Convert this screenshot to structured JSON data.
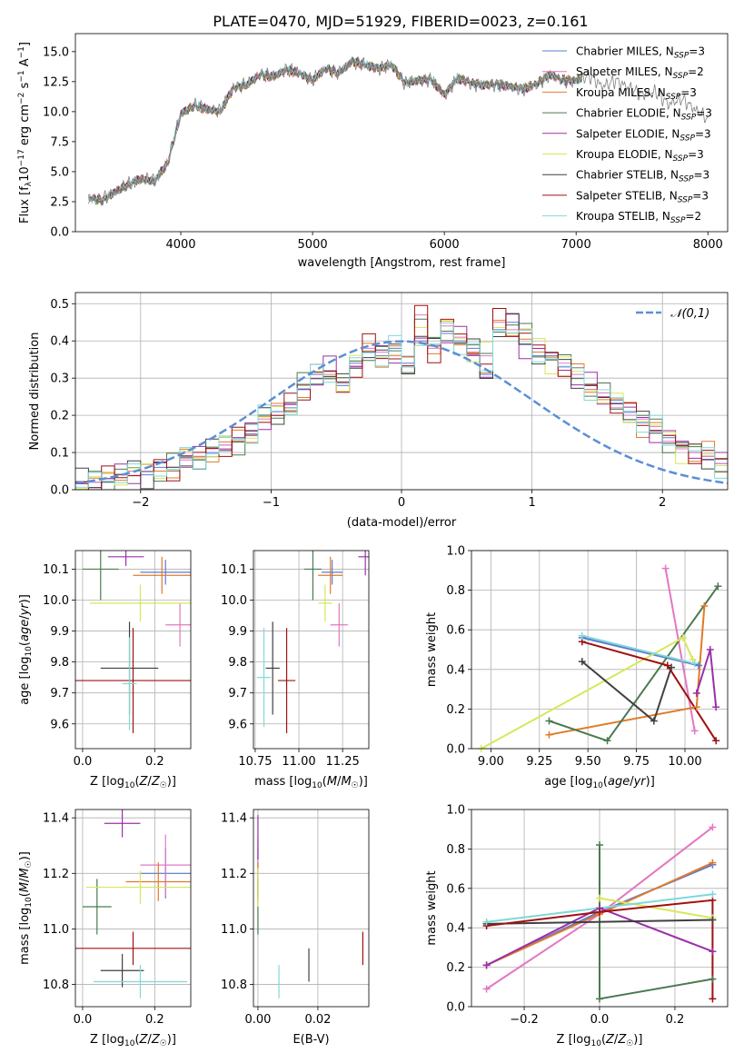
{
  "figure": {
    "title": "PLATE=0470, MJD=51929, FIBERID=0023, z=0.161"
  },
  "colors": {
    "Chabrier MILES": "#5b7bd5",
    "Salpeter MILES": "#e377c2",
    "Kroupa MILES": "#e07b2a",
    "Chabrier ELODIE": "#4a7a50",
    "Salpeter ELODIE": "#9b30a8",
    "Kroupa ELODIE": "#d6e85a",
    "Chabrier STELIB": "#404040",
    "Salpeter STELIB": "#a01010",
    "Kroupa STELIB": "#80d8d8"
  },
  "chart_data": [
    {
      "id": "spectrum",
      "type": "line",
      "xlabel": "wavelength [Angstrom, rest frame]",
      "ylabel": "Flux [f_λ 10^-17 erg cm^-2 s^-1 A^-1]",
      "xlim": [
        3200,
        8150
      ],
      "ylim": [
        0,
        16.5
      ],
      "xticks": [
        4000,
        5000,
        6000,
        7000,
        8000
      ],
      "yticks": [
        0.0,
        2.5,
        5.0,
        7.5,
        10.0,
        12.5,
        15.0
      ],
      "legend_position": "top-right",
      "grid": false,
      "data_color": "#808080",
      "observed": {
        "name": "data",
        "x": [
          3300,
          3400,
          3500,
          3600,
          3700,
          3800,
          3900,
          4000,
          4100,
          4200,
          4300,
          4400,
          4500,
          4600,
          4700,
          4800,
          4900,
          5000,
          5100,
          5200,
          5300,
          5400,
          5500,
          5600,
          5700,
          5800,
          5900,
          6000,
          6100,
          6200,
          6300,
          6400,
          6500,
          6600,
          6700,
          6800,
          6900,
          7000,
          7100,
          7200,
          7300,
          7400,
          7500,
          7600,
          7700,
          7800,
          7900,
          8000
        ],
        "y": [
          2.8,
          2.6,
          3.3,
          3.9,
          4.4,
          4.2,
          5.7,
          9.8,
          10.5,
          10.2,
          10.0,
          12.0,
          12.2,
          13.1,
          12.9,
          13.5,
          13.2,
          12.6,
          13.6,
          13.2,
          14.2,
          13.9,
          13.6,
          13.9,
          12.4,
          12.6,
          12.7,
          11.4,
          12.8,
          12.4,
          12.2,
          12.3,
          12.1,
          11.9,
          12.3,
          13.1,
          12.6,
          12.6,
          13.0,
          12.1,
          12.6,
          12.0,
          11.4,
          11.7,
          10.6,
          11.1,
          10.2,
          9.4
        ]
      },
      "series": [
        {
          "name": "Chabrier MILES",
          "n_ssp": "3"
        },
        {
          "name": "Salpeter MILES",
          "n_ssp": "2"
        },
        {
          "name": "Kroupa MILES",
          "n_ssp": "3"
        },
        {
          "name": "Chabrier ELODIE",
          "n_ssp": "3"
        },
        {
          "name": "Salpeter ELODIE",
          "n_ssp": "3"
        },
        {
          "name": "Kroupa ELODIE",
          "n_ssp": "3"
        },
        {
          "name": "Chabrier STELIB",
          "n_ssp": "3"
        },
        {
          "name": "Salpeter STELIB",
          "n_ssp": "3"
        },
        {
          "name": "Kroupa STELIB",
          "n_ssp": "2"
        }
      ]
    },
    {
      "id": "residuals",
      "type": "bar",
      "xlabel": "(data-model)/error",
      "ylabel": "Normed distribution",
      "xlim": [
        -2.5,
        2.5
      ],
      "ylim": [
        0,
        0.53
      ],
      "xticks": [
        -2,
        -1,
        0,
        1,
        2
      ],
      "yticks": [
        0.0,
        0.1,
        0.2,
        0.3,
        0.4,
        0.5
      ],
      "grid": true,
      "legend_position": "top-right",
      "reference": {
        "name": "𝒩(0,1)",
        "color": "#5b8fd5",
        "style": "dashed"
      },
      "bin_width": 0.1,
      "bin_start": -2.5,
      "histograms": [
        {
          "name": "Chabrier MILES",
          "values": [
            0.02,
            0.02,
            0.03,
            0.04,
            0.05,
            0.04,
            0.06,
            0.05,
            0.09,
            0.08,
            0.1,
            0.12,
            0.14,
            0.15,
            0.2,
            0.21,
            0.22,
            0.27,
            0.31,
            0.32,
            0.28,
            0.34,
            0.37,
            0.36,
            0.38,
            0.34,
            0.4,
            0.39,
            0.42,
            0.4,
            0.38,
            0.31,
            0.43,
            0.45,
            0.39,
            0.36,
            0.36,
            0.33,
            0.3,
            0.28,
            0.25,
            0.24,
            0.21,
            0.18,
            0.16,
            0.14,
            0.12,
            0.1,
            0.09,
            0.07,
            0.06
          ]
        },
        {
          "name": "Salpeter MILES",
          "values": [
            0.02,
            0.02,
            0.03,
            0.04,
            0.05,
            0.05,
            0.05,
            0.06,
            0.08,
            0.09,
            0.11,
            0.12,
            0.13,
            0.16,
            0.19,
            0.2,
            0.23,
            0.28,
            0.3,
            0.31,
            0.29,
            0.33,
            0.38,
            0.37,
            0.36,
            0.33,
            0.47,
            0.38,
            0.44,
            0.41,
            0.37,
            0.36,
            0.45,
            0.43,
            0.43,
            0.38,
            0.35,
            0.34,
            0.31,
            0.27,
            0.26,
            0.22,
            0.2,
            0.19,
            0.17,
            0.13,
            0.11,
            0.1,
            0.09,
            0.07,
            0.06
          ]
        }
      ],
      "normal_curve": {
        "x": [
          -2.5,
          -2.25,
          -2.0,
          -1.75,
          -1.5,
          -1.25,
          -1.0,
          -0.75,
          -0.5,
          -0.25,
          0.0,
          0.25,
          0.5,
          0.75,
          1.0,
          1.25,
          1.5,
          1.75,
          2.0,
          2.25,
          2.5
        ],
        "y": [
          0.018,
          0.032,
          0.054,
          0.086,
          0.13,
          0.183,
          0.242,
          0.301,
          0.352,
          0.387,
          0.399,
          0.387,
          0.352,
          0.301,
          0.242,
          0.183,
          0.13,
          0.086,
          0.054,
          0.032,
          0.018
        ]
      }
    },
    {
      "id": "age-vs-Z",
      "type": "scatter",
      "xlabel": "Z [log10(Z/Z☉)]",
      "ylabel": "age  [log10(age/yr)]",
      "xlim": [
        -0.02,
        0.3
      ],
      "ylim": [
        9.52,
        10.16
      ],
      "xticks": [
        0.0,
        0.2
      ],
      "yticks": [
        9.6,
        9.7,
        9.8,
        9.9,
        10.0,
        10.1
      ],
      "grid": true,
      "points": [
        {
          "series": "Chabrier MILES",
          "x": 0.23,
          "y": 10.09,
          "xerr": 0.07,
          "yerr": 0.04
        },
        {
          "series": "Salpeter MILES",
          "x": 0.27,
          "y": 9.92,
          "xerr": 0.04,
          "yerr": 0.07
        },
        {
          "series": "Kroupa MILES",
          "x": 0.22,
          "y": 10.08,
          "xerr": 0.08,
          "yerr": 0.06
        },
        {
          "series": "Chabrier ELODIE",
          "x": 0.05,
          "y": 10.1,
          "xerr": 0.05,
          "yerr": 0.1
        },
        {
          "series": "Salpeter ELODIE",
          "x": 0.12,
          "y": 10.14,
          "xerr": 0.05,
          "yerr": 0.03
        },
        {
          "series": "Kroupa ELODIE",
          "x": 0.16,
          "y": 9.99,
          "xerr": 0.14,
          "yerr": 0.06
        },
        {
          "series": "Chabrier STELIB",
          "x": 0.13,
          "y": 9.78,
          "xerr": 0.08,
          "yerr": 0.15
        },
        {
          "series": "Salpeter STELIB",
          "x": 0.14,
          "y": 9.74,
          "xerr": 0.16,
          "yerr": 0.17
        },
        {
          "series": "Kroupa STELIB",
          "x": 0.13,
          "y": 9.73,
          "xerr": 0.02,
          "yerr": 0.15
        }
      ]
    },
    {
      "id": "age-vs-mass",
      "type": "scatter",
      "xlabel": "mass [log10(M/M☉)]",
      "ylabel": "",
      "xlim": [
        10.74,
        11.4
      ],
      "ylim": [
        9.52,
        10.16
      ],
      "xticks": [
        10.75,
        11.0,
        11.25
      ],
      "yticks": [
        9.6,
        9.7,
        9.8,
        9.9,
        10.0,
        10.1
      ],
      "grid": true,
      "points": [
        {
          "series": "Chabrier MILES",
          "x": 11.19,
          "y": 10.09,
          "xerr": 0.06,
          "yerr": 0.04
        },
        {
          "series": "Salpeter MILES",
          "x": 11.23,
          "y": 9.92,
          "xerr": 0.05,
          "yerr": 0.07
        },
        {
          "series": "Kroupa MILES",
          "x": 11.18,
          "y": 10.08,
          "xerr": 0.07,
          "yerr": 0.06
        },
        {
          "series": "Chabrier ELODIE",
          "x": 11.08,
          "y": 10.1,
          "xerr": 0.05,
          "yerr": 0.1
        },
        {
          "series": "Salpeter ELODIE",
          "x": 11.38,
          "y": 10.14,
          "xerr": 0.04,
          "yerr": 0.06
        },
        {
          "series": "Kroupa ELODIE",
          "x": 11.15,
          "y": 9.99,
          "xerr": 0.04,
          "yerr": 0.06
        },
        {
          "series": "Chabrier STELIB",
          "x": 10.85,
          "y": 9.78,
          "xerr": 0.04,
          "yerr": 0.15
        },
        {
          "series": "Salpeter STELIB",
          "x": 10.93,
          "y": 9.74,
          "xerr": 0.05,
          "yerr": 0.17
        },
        {
          "series": "Kroupa STELIB",
          "x": 10.8,
          "y": 9.75,
          "xerr": 0.04,
          "yerr": 0.16
        }
      ]
    },
    {
      "id": "weight-vs-age",
      "type": "line",
      "xlabel": "age  [log10(age/yr)]",
      "ylabel": "mass weight",
      "xlim": [
        8.9,
        10.22
      ],
      "ylim": [
        0.0,
        1.0
      ],
      "xticks": [
        9.0,
        9.25,
        9.5,
        9.75,
        10.0
      ],
      "yticks": [
        0.0,
        0.2,
        0.4,
        0.6,
        0.8,
        1.0
      ],
      "grid": true,
      "series": [
        {
          "name": "Chabrier MILES",
          "x": [
            9.47,
            10.07
          ],
          "y": [
            0.56,
            0.42
          ]
        },
        {
          "name": "Salpeter MILES",
          "x": [
            9.9,
            10.05
          ],
          "y": [
            0.91,
            0.09
          ]
        },
        {
          "name": "Kroupa MILES",
          "x": [
            9.3,
            10.06,
            10.1
          ],
          "y": [
            0.07,
            0.21,
            0.72
          ]
        },
        {
          "name": "Chabrier ELODIE",
          "x": [
            9.3,
            9.6,
            10.17
          ],
          "y": [
            0.14,
            0.04,
            0.82
          ]
        },
        {
          "name": "Salpeter ELODIE",
          "x": [
            10.06,
            10.13,
            10.16
          ],
          "y": [
            0.28,
            0.5,
            0.21
          ]
        },
        {
          "name": "Kroupa ELODIE",
          "x": [
            8.95,
            9.99,
            10.04
          ],
          "y": [
            0.0,
            0.56,
            0.45
          ]
        },
        {
          "name": "Chabrier STELIB",
          "x": [
            9.47,
            9.84,
            9.93
          ],
          "y": [
            0.44,
            0.14,
            0.41
          ]
        },
        {
          "name": "Salpeter STELIB",
          "x": [
            9.47,
            9.91,
            10.16
          ],
          "y": [
            0.54,
            0.42,
            0.04
          ]
        },
        {
          "name": "Kroupa STELIB",
          "x": [
            9.47,
            10.05
          ],
          "y": [
            0.57,
            0.43
          ]
        }
      ]
    },
    {
      "id": "mass-vs-Z",
      "type": "scatter",
      "xlabel": "Z [log10(Z/Z☉)]",
      "ylabel": "mass [log10(M/M☉)]",
      "xlim": [
        -0.02,
        0.3
      ],
      "ylim": [
        10.72,
        11.43
      ],
      "xticks": [
        0.0,
        0.2
      ],
      "yticks": [
        10.8,
        11.0,
        11.2,
        11.4
      ],
      "grid": true,
      "points": [
        {
          "series": "Chabrier MILES",
          "x": 0.23,
          "y": 11.2,
          "xerr": 0.07,
          "yerr": 0.09
        },
        {
          "series": "Salpeter MILES",
          "x": 0.23,
          "y": 11.23,
          "xerr": 0.07,
          "yerr": 0.11
        },
        {
          "series": "Kroupa MILES",
          "x": 0.21,
          "y": 11.17,
          "xerr": 0.09,
          "yerr": 0.07
        },
        {
          "series": "Chabrier ELODIE",
          "x": 0.04,
          "y": 11.08,
          "xerr": 0.04,
          "yerr": 0.1
        },
        {
          "series": "Salpeter ELODIE",
          "x": 0.11,
          "y": 11.38,
          "xerr": 0.05,
          "yerr": 0.05
        },
        {
          "series": "Kroupa ELODIE",
          "x": 0.16,
          "y": 11.15,
          "xerr": 0.15,
          "yerr": 0.06
        },
        {
          "series": "Chabrier STELIB",
          "x": 0.11,
          "y": 10.85,
          "xerr": 0.06,
          "yerr": 0.06
        },
        {
          "series": "Salpeter STELIB",
          "x": 0.14,
          "y": 10.93,
          "xerr": 0.17,
          "yerr": 0.06
        },
        {
          "series": "Kroupa STELIB",
          "x": 0.16,
          "y": 10.81,
          "xerr": 0.13,
          "yerr": 0.06
        }
      ]
    },
    {
      "id": "mass-vs-ebv",
      "type": "scatter",
      "xlabel": "E(B-V)",
      "ylabel": "",
      "xlim": [
        -0.0015,
        0.037
      ],
      "ylim": [
        10.72,
        11.43
      ],
      "xticks": [
        0.0,
        0.02
      ],
      "yticks": [
        10.8,
        11.0,
        11.2,
        11.4
      ],
      "grid": true,
      "points": [
        {
          "series": "Chabrier MILES",
          "x": 0.0,
          "y": 11.2,
          "yerr": 0.09
        },
        {
          "series": "Salpeter MILES",
          "x": 0.0,
          "y": 11.23,
          "yerr": 0.1
        },
        {
          "series": "Kroupa MILES",
          "x": 0.0,
          "y": 11.17,
          "yerr": 0.07
        },
        {
          "series": "Chabrier ELODIE",
          "x": 0.0,
          "y": 11.08,
          "yerr": 0.1
        },
        {
          "series": "Salpeter ELODIE",
          "x": 0.0,
          "y": 11.33,
          "yerr": 0.08
        },
        {
          "series": "Kroupa ELODIE",
          "x": 0.0,
          "y": 11.15,
          "yerr": 0.07
        },
        {
          "series": "Chabrier STELIB",
          "x": 0.017,
          "y": 10.87,
          "yerr": 0.06
        },
        {
          "series": "Salpeter STELIB",
          "x": 0.035,
          "y": 10.93,
          "yerr": 0.06
        },
        {
          "series": "Kroupa STELIB",
          "x": 0.007,
          "y": 10.81,
          "yerr": 0.06
        }
      ]
    },
    {
      "id": "weight-vs-Z",
      "type": "line",
      "xlabel": "Z [log10(Z/Z☉)]",
      "ylabel": "mass weight",
      "xlim": [
        -0.34,
        0.34
      ],
      "ylim": [
        0.0,
        1.0
      ],
      "xticks": [
        -0.2,
        0.0,
        0.2
      ],
      "yticks": [
        0.0,
        0.2,
        0.4,
        0.6,
        0.8,
        1.0
      ],
      "grid": true,
      "series": [
        {
          "name": "Chabrier MILES",
          "x": [
            -0.3,
            0.0,
            0.3
          ],
          "y": [
            0.21,
            0.48,
            0.72
          ]
        },
        {
          "name": "Salpeter MILES",
          "x": [
            -0.3,
            0.0,
            0.3
          ],
          "y": [
            0.09,
            0.47,
            0.91
          ]
        },
        {
          "name": "Kroupa MILES",
          "x": [
            -0.3,
            0.0,
            0.3
          ],
          "y": [
            0.21,
            0.47,
            0.73
          ]
        },
        {
          "name": "Chabrier ELODIE",
          "x": [
            0.0,
            0.0,
            0.3
          ],
          "y": [
            0.82,
            0.04,
            0.14
          ]
        },
        {
          "name": "Salpeter ELODIE",
          "x": [
            -0.3,
            0.0,
            0.3
          ],
          "y": [
            0.21,
            0.5,
            0.28
          ]
        },
        {
          "name": "Kroupa ELODIE",
          "x": [
            0.0,
            0.3
          ],
          "y": [
            0.55,
            0.45
          ]
        },
        {
          "name": "Chabrier STELIB",
          "x": [
            -0.3,
            0.3
          ],
          "y": [
            0.42,
            0.44
          ]
        },
        {
          "name": "Salpeter STELIB",
          "x": [
            -0.3,
            0.0,
            0.3,
            0.3
          ],
          "y": [
            0.41,
            0.48,
            0.54,
            0.04
          ]
        },
        {
          "name": "Kroupa STELIB",
          "x": [
            -0.3,
            0.3
          ],
          "y": [
            0.43,
            0.57
          ]
        }
      ]
    }
  ]
}
